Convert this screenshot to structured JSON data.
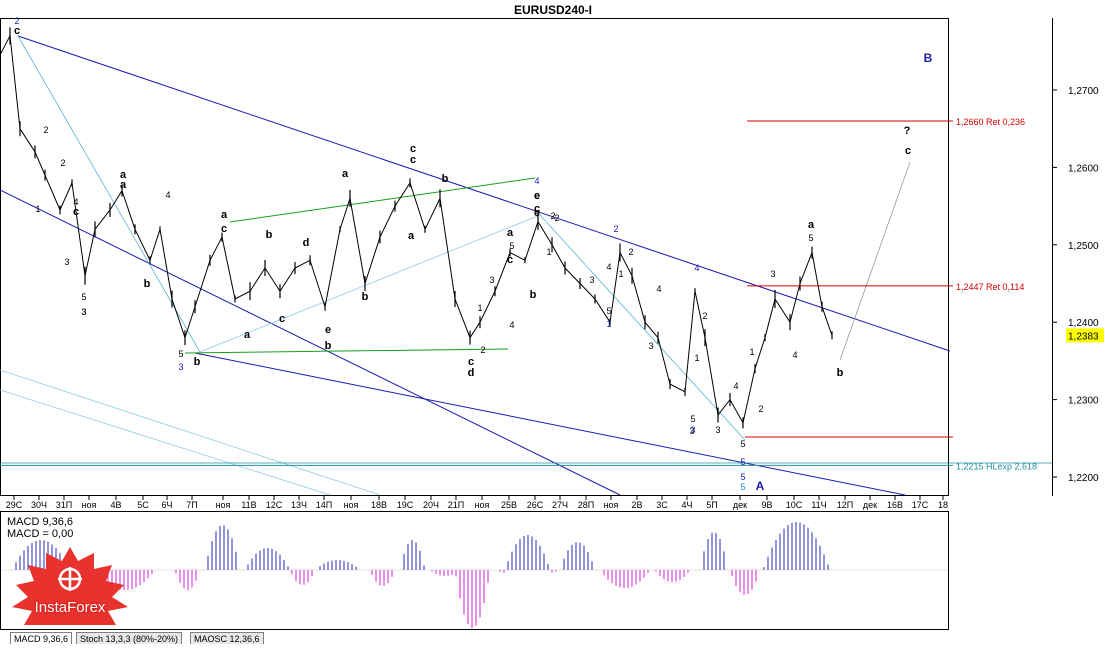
{
  "chart_title": "EURUSD240-I",
  "chart_data": {
    "type": "candlestick",
    "symbol": "EURUSD240-I",
    "ylim": [
      1.2185,
      1.279
    ],
    "y_ticks": [
      "1,2700",
      "1,2600",
      "1,2500",
      "1,2400",
      "1,2300",
      "1,2200"
    ],
    "current_price": "1,2383",
    "x_ticks": [
      "29С",
      "30Ч",
      "31П",
      "ноя",
      "4В",
      "5С",
      "6Ч",
      "7П",
      "ноя",
      "11В",
      "12С",
      "13Ч",
      "14П",
      "ноя",
      "18В",
      "19С",
      "20Ч",
      "21П",
      "ноя",
      "25В",
      "26С",
      "27Ч",
      "28П",
      "ноя",
      "2В",
      "3С",
      "4Ч",
      "5П",
      "дек",
      "9В",
      "10С",
      "11Ч",
      "12П",
      "дек",
      "16В",
      "17С",
      "18"
    ],
    "approx_path": [
      [
        0,
        1.2745
      ],
      [
        10,
        1.277
      ],
      [
        20,
        1.265
      ],
      [
        35,
        1.262
      ],
      [
        45,
        1.259
      ],
      [
        60,
        1.2545
      ],
      [
        72,
        1.258
      ],
      [
        85,
        1.246
      ],
      [
        95,
        1.252
      ],
      [
        110,
        1.2545
      ],
      [
        122,
        1.257
      ],
      [
        135,
        1.252
      ],
      [
        150,
        1.248
      ],
      [
        160,
        1.252
      ],
      [
        172,
        1.243
      ],
      [
        185,
        1.238
      ],
      [
        195,
        1.242
      ],
      [
        210,
        1.248
      ],
      [
        222,
        1.251
      ],
      [
        235,
        1.243
      ],
      [
        250,
        1.244
      ],
      [
        265,
        1.247
      ],
      [
        280,
        1.244
      ],
      [
        295,
        1.247
      ],
      [
        310,
        1.248
      ],
      [
        325,
        1.242
      ],
      [
        340,
        1.252
      ],
      [
        350,
        1.256
      ],
      [
        365,
        1.245
      ],
      [
        380,
        1.251
      ],
      [
        395,
        1.255
      ],
      [
        410,
        1.258
      ],
      [
        425,
        1.252
      ],
      [
        440,
        1.256
      ],
      [
        455,
        1.243
      ],
      [
        470,
        1.238
      ],
      [
        480,
        1.24
      ],
      [
        495,
        1.244
      ],
      [
        510,
        1.249
      ],
      [
        525,
        1.248
      ],
      [
        538,
        1.253
      ],
      [
        552,
        1.25
      ],
      [
        565,
        1.247
      ],
      [
        580,
        1.245
      ],
      [
        595,
        1.243
      ],
      [
        610,
        1.24
      ],
      [
        620,
        1.249
      ],
      [
        632,
        1.246
      ],
      [
        645,
        1.24
      ],
      [
        658,
        1.238
      ],
      [
        670,
        1.232
      ],
      [
        685,
        1.231
      ],
      [
        695,
        1.244
      ],
      [
        705,
        1.238
      ],
      [
        718,
        1.228
      ],
      [
        730,
        1.23
      ],
      [
        743,
        1.227
      ],
      [
        755,
        1.234
      ],
      [
        765,
        1.238
      ],
      [
        775,
        1.243
      ],
      [
        790,
        1.24
      ],
      [
        800,
        1.245
      ],
      [
        812,
        1.249
      ],
      [
        822,
        1.242
      ],
      [
        832,
        1.2383
      ]
    ],
    "levels": [
      {
        "label": "1,2660 Ret 0,236",
        "value": 1.266,
        "color": "#d40000"
      },
      {
        "label": "1,2447 Ret 0,114",
        "value": 1.2447,
        "color": "#d40000"
      },
      {
        "label": "1,2215 HLexp 2,618",
        "value": 1.2215,
        "color": "#1e90a0"
      }
    ],
    "wave_labels": [
      {
        "t": "2",
        "c": "#1a1ab0"
      },
      {
        "t": "c",
        "c": "#000"
      },
      {
        "t": "2",
        "c": "#000"
      },
      {
        "t": "1",
        "c": "#000"
      },
      {
        "t": "2",
        "c": "#000"
      },
      {
        "t": "a",
        "c": "#000"
      },
      {
        "t": "4",
        "c": "#000"
      },
      {
        "t": "c",
        "c": "#000"
      },
      {
        "t": "3",
        "c": "#000"
      },
      {
        "t": "4",
        "c": "#000"
      },
      {
        "t": "5",
        "c": "#000"
      },
      {
        "t": "3",
        "c": "#000"
      },
      {
        "t": "b",
        "c": "#000"
      },
      {
        "t": "a",
        "c": "#000"
      },
      {
        "t": "c",
        "c": "#000"
      },
      {
        "t": "5",
        "c": "#000"
      },
      {
        "t": "3",
        "c": "#1a1ab0"
      },
      {
        "t": "b",
        "c": "#000"
      },
      {
        "t": "b",
        "c": "#000"
      },
      {
        "t": "a",
        "c": "#000"
      },
      {
        "t": "c",
        "c": "#000"
      },
      {
        "t": "d",
        "c": "#000"
      },
      {
        "t": "e",
        "c": "#000"
      },
      {
        "t": "b",
        "c": "#000"
      },
      {
        "t": "a",
        "c": "#000"
      },
      {
        "t": "b",
        "c": "#000"
      },
      {
        "t": "c",
        "c": "#000"
      },
      {
        "t": "c",
        "c": "#000"
      },
      {
        "t": "b",
        "c": "#000"
      },
      {
        "t": "a",
        "c": "#000"
      },
      {
        "t": "e",
        "c": "#000"
      },
      {
        "t": "d",
        "c": "#000"
      },
      {
        "t": "a",
        "c": "#000"
      },
      {
        "t": "1",
        "c": "#000"
      },
      {
        "t": "c",
        "c": "#000"
      },
      {
        "t": "2",
        "c": "#000"
      },
      {
        "t": "3",
        "c": "#000"
      },
      {
        "t": "4",
        "c": "#1a1ab0"
      },
      {
        "t": "e",
        "c": "#000"
      },
      {
        "t": "c",
        "c": "#000"
      },
      {
        "t": "2",
        "c": "#000"
      },
      {
        "t": "5",
        "c": "#000"
      },
      {
        "t": "3",
        "c": "#000"
      },
      {
        "t": "1",
        "c": "#000"
      },
      {
        "t": "4",
        "c": "#000"
      },
      {
        "t": "b",
        "c": "#000"
      },
      {
        "t": "2",
        "c": "#1a1ab0"
      },
      {
        "t": "4",
        "c": "#000"
      },
      {
        "t": "2",
        "c": "#000"
      },
      {
        "t": "1",
        "c": "#000"
      },
      {
        "t": "3",
        "c": "#000"
      },
      {
        "t": "5",
        "c": "#000"
      },
      {
        "t": "1",
        "c": "#1a1ab0"
      },
      {
        "t": "4",
        "c": "#000"
      },
      {
        "t": "3",
        "c": "#000"
      },
      {
        "t": "4",
        "c": "#1a1ab0"
      },
      {
        "t": "2",
        "c": "#000"
      },
      {
        "t": "1",
        "c": "#000"
      },
      {
        "t": "5",
        "c": "#000"
      },
      {
        "t": "3",
        "c": "#1a1ab0"
      },
      {
        "t": "3",
        "c": "#000"
      },
      {
        "t": "4",
        "c": "#000"
      },
      {
        "t": "5",
        "c": "#000"
      },
      {
        "t": "5",
        "c": "#1a1ab0"
      },
      {
        "t": "5",
        "c": "#1a1ab0"
      },
      {
        "t": "5",
        "c": "#1a8ad0"
      },
      {
        "t": "A",
        "c": "#1a1ab0"
      },
      {
        "t": "1",
        "c": "#000"
      },
      {
        "t": "2",
        "c": "#000"
      },
      {
        "t": "3",
        "c": "#000"
      },
      {
        "t": "4",
        "c": "#000"
      },
      {
        "t": "a",
        "c": "#000"
      },
      {
        "t": "5",
        "c": "#000"
      },
      {
        "t": "b",
        "c": "#000"
      },
      {
        "t": "?",
        "c": "#000"
      },
      {
        "t": "c",
        "c": "#000"
      },
      {
        "t": "B",
        "c": "#1a1ab0"
      },
      {
        "t": "3",
        "c": "#000"
      },
      {
        "t": "c",
        "c": "#000"
      },
      {
        "t": "a",
        "c": "#000"
      },
      {
        "t": "e",
        "c": "#000"
      },
      {
        "t": "2",
        "c": "#000"
      }
    ]
  },
  "indicator": {
    "macd_line1": "MACD 9,36,6",
    "macd_line2": "MACD = 0,00",
    "positive_color": "#2a2ab8",
    "negative_color": "#d020d0"
  },
  "tabs": [
    "MACD 9,36,6",
    "Stoch 13,3,3 (80%-20%)",
    "MAOSC 12,36,6"
  ],
  "logo": {
    "text": "InstaForex",
    "color": "#e8322e"
  }
}
